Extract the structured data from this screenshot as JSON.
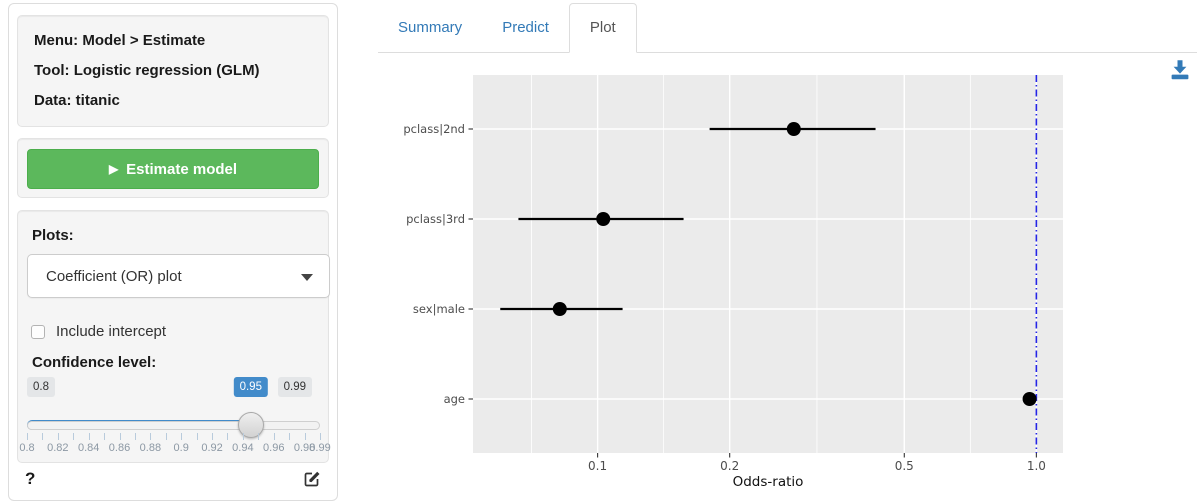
{
  "sidebar": {
    "info": {
      "menu": "Menu: Model > Estimate",
      "tool": "Tool: Logistic regression (GLM)",
      "data": "Data: titanic"
    },
    "estimate_button": {
      "label": "Estimate model",
      "icon": "play-icon",
      "color": "#5cb85c"
    },
    "plots": {
      "label": "Plots:",
      "selected": "Coefficient (OR) plot"
    },
    "include_intercept": {
      "label": "Include intercept",
      "checked": false
    },
    "confidence": {
      "label": "Confidence level:",
      "min": 0.8,
      "max": 0.99,
      "value": 0.95,
      "step": 0.01,
      "min_label": "0.8",
      "max_label": "0.99",
      "value_label": "0.95",
      "grid_labels": [
        "0.8",
        "0.82",
        "0.84",
        "0.86",
        "0.88",
        "0.9",
        "0.92",
        "0.94",
        "0.96",
        "0.98",
        "0.99"
      ],
      "accent": "#428bca"
    },
    "help_label": "?"
  },
  "tabs": [
    {
      "label": "Summary",
      "active": false
    },
    {
      "label": "Predict",
      "active": false
    },
    {
      "label": "Plot",
      "active": true
    }
  ],
  "download_icon_color": "#337ab7",
  "chart_data": {
    "type": "scatter",
    "subtype": "coefficient-odds-ratio-plot",
    "title": "",
    "xlabel": "Odds-ratio",
    "ylabel": "",
    "x_scale": "log",
    "xlim": [
      0.052,
      1.15
    ],
    "x_ticks": [
      0.1,
      0.2,
      0.5,
      1.0
    ],
    "x_tick_labels": [
      "0.1",
      "0.2",
      "0.5",
      "1.0"
    ],
    "x_minor_gridlines": [
      0.0707,
      0.1414,
      0.3162,
      0.7071
    ],
    "grid": true,
    "panel_bg": "#EBEBEB",
    "point_color": "#000000",
    "reference_line": {
      "x": 1.0,
      "color": "#2525e6",
      "style": "dash-dot"
    },
    "points": [
      {
        "label": "pclass|2nd",
        "or": 0.28,
        "ci_lo": 0.18,
        "ci_hi": 0.43
      },
      {
        "label": "pclass|3rd",
        "or": 0.103,
        "ci_lo": 0.066,
        "ci_hi": 0.157
      },
      {
        "label": "sex|male",
        "or": 0.082,
        "ci_lo": 0.06,
        "ci_hi": 0.114
      },
      {
        "label": "age",
        "or": 0.965,
        "ci_lo": 0.952,
        "ci_hi": 0.978
      }
    ]
  }
}
